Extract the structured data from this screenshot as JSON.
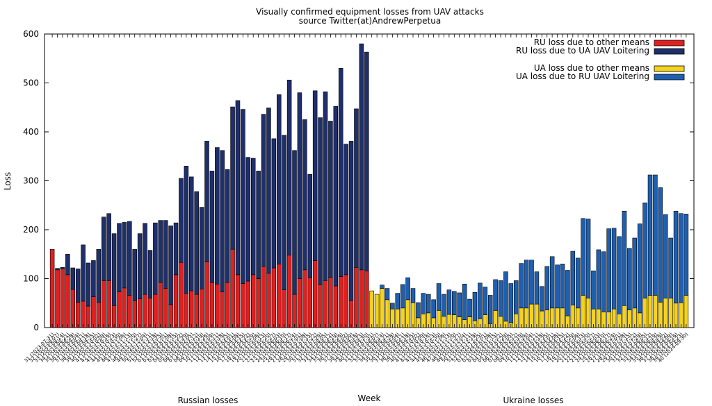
{
  "chart_data": {
    "type": "bar",
    "title": "Visually confirmed equipment losses from UAV attacks",
    "subtitle": "source Twitter(at)AndrewPerpetua",
    "xlabel": "Week",
    "ylabel": "Loss",
    "ylim": [
      0,
      600
    ],
    "yticks": [
      0,
      100,
      200,
      300,
      400,
      500,
      600
    ],
    "grid": false,
    "legend_position": "top-right",
    "group_labels": [
      "Russian losses",
      "Ukraine losses"
    ],
    "colors": {
      "ru_other": "#e02020",
      "ru_uav": "#1f2f6b",
      "ua_other": "#f5d31d",
      "ua_uav": "#1f5fb0"
    },
    "legend": [
      {
        "label": "RU loss due to other means",
        "color": "#e02020"
      },
      {
        "label": "RU loss due to UA UAV Loitering",
        "color": "#1f2f6b"
      },
      {
        "label": "UA loss due to other means",
        "color": "#f5d31d"
      },
      {
        "label": "UA loss due to RU UAV Loitering",
        "color": "#1f5fb0"
      }
    ],
    "categories": [
      "31 (2023-07-31)",
      "32 (2023-08-07)",
      "33 (2023-08-14)",
      "34 (2023-08-21)",
      "35 (2023-08-28)",
      "36 (2023-09-04)",
      "37 (2023-09-11)",
      "38 (2023-09-18)",
      "39 (2023-09-25)",
      "40 (2023-10-02)",
      "41 (2023-10-09)",
      "42 (2023-10-16)",
      "43 (2023-10-23)",
      "44 (2023-10-30)",
      "45 (2023-11-06)",
      "46 (2023-11-13)",
      "47 (2023-11-20)",
      "48 (2023-11-27)",
      "49 (2023-12-04)",
      "50 (2023-12-11)",
      "51 (2023-12-18)",
      "52 (2023-12-25)",
      "01 (2024-01-01)",
      "02 (2024-01-08)",
      "03 (2024-01-15)",
      "04 (2024-01-22)",
      "05 (2024-01-29)",
      "06 (2024-02-05)",
      "07 (2024-02-12)",
      "08 (2024-02-19)",
      "09 (2024-02-26)",
      "10 (2024-03-04)",
      "11 (2024-03-11)",
      "12 (2024-03-18)",
      "13 (2024-03-25)",
      "14 (2024-04-01)",
      "15 (2024-04-08)",
      "16 (2024-04-15)",
      "17 (2024-04-22)",
      "18 (2024-04-29)",
      "19 (2024-05-06)",
      "20 (2024-05-13)",
      "21 (2024-05-20)",
      "22 (2024-05-27)",
      "23 (2024-06-03)",
      "24 (2024-06-10)",
      "25 (2024-06-17)",
      "26 (2024-06-24)",
      "27 (2024-07-01)",
      "28 (2024-07-08)",
      "29 (2024-07-15)",
      "30 (2024-07-22)",
      "31 (2024-07-29)",
      "32 (2024-08-05)",
      "33 (2024-08-12)",
      "34 (2024-08-19)",
      "35 (2024-08-26)",
      "36 (2024-09-02)",
      "37 (2024-09-09)",
      "38 (2024-09-16)",
      "39 (2024-09-23)",
      "40 (2024-09-30)"
    ],
    "series": [
      {
        "name": "RU loss due to other means",
        "group": "ru",
        "values": [
          160,
          118,
          120,
          108,
          78,
          52,
          54,
          44,
          63,
          52,
          96,
          96,
          45,
          73,
          81,
          66,
          55,
          59,
          68,
          60,
          68,
          92,
          80,
          47,
          108,
          133,
          70,
          75,
          68,
          79,
          135,
          92,
          89,
          73,
          92,
          160,
          108,
          90,
          95,
          108,
          100,
          125,
          111,
          122,
          130,
          77,
          148,
          68,
          100,
          118,
          102,
          137,
          88,
          96,
          103,
          85,
          104,
          108,
          55,
          123,
          118,
          116
        ]
      },
      {
        "name": "RU loss due to UA UAV Loitering",
        "group": "ru",
        "values": [
          0,
          3,
          3,
          42,
          44,
          68,
          115,
          88,
          74,
          108,
          130,
          137,
          147,
          140,
          134,
          151,
          105,
          133,
          145,
          98,
          146,
          127,
          139,
          161,
          106,
          172,
          260,
          233,
          210,
          167,
          246,
          228,
          279,
          289,
          231,
          291,
          356,
          356,
          253,
          238,
          220,
          311,
          338,
          264,
          346,
          316,
          358,
          294,
          380,
          307,
          211,
          347,
          341,
          386,
          319,
          367,
          426,
          267,
          326,
          324,
          462,
          447
        ]
      },
      {
        "name": "UA loss due to other means",
        "group": "ua",
        "values": [
          75,
          68,
          80,
          57,
          38,
          38,
          40,
          57,
          51,
          20,
          28,
          30,
          20,
          35,
          23,
          27,
          26,
          22,
          16,
          22,
          14,
          18,
          26,
          8,
          35,
          23,
          13,
          10,
          28,
          40,
          40,
          48,
          48,
          34,
          36,
          40,
          40,
          40,
          24,
          46,
          40,
          66,
          60,
          38,
          38,
          32,
          32,
          38,
          28,
          45,
          36,
          40,
          30,
          60,
          66,
          66,
          52,
          60,
          60,
          50,
          51,
          66
        ]
      },
      {
        "name": "UA loss due to RU UAV Loitering",
        "group": "ua",
        "values": [
          0,
          0,
          7,
          23,
          12,
          32,
          48,
          45,
          29,
          31,
          42,
          38,
          37,
          55,
          45,
          50,
          48,
          49,
          73,
          36,
          58,
          73,
          57,
          58,
          63,
          73,
          101,
          80,
          68,
          91,
          98,
          90,
          66,
          50,
          89,
          105,
          88,
          90,
          93,
          110,
          102,
          157,
          162,
          78,
          121,
          123,
          170,
          165,
          158,
          193,
          126,
          143,
          182,
          195,
          246,
          246,
          234,
          171,
          123,
          188,
          182,
          166
        ]
      }
    ]
  }
}
